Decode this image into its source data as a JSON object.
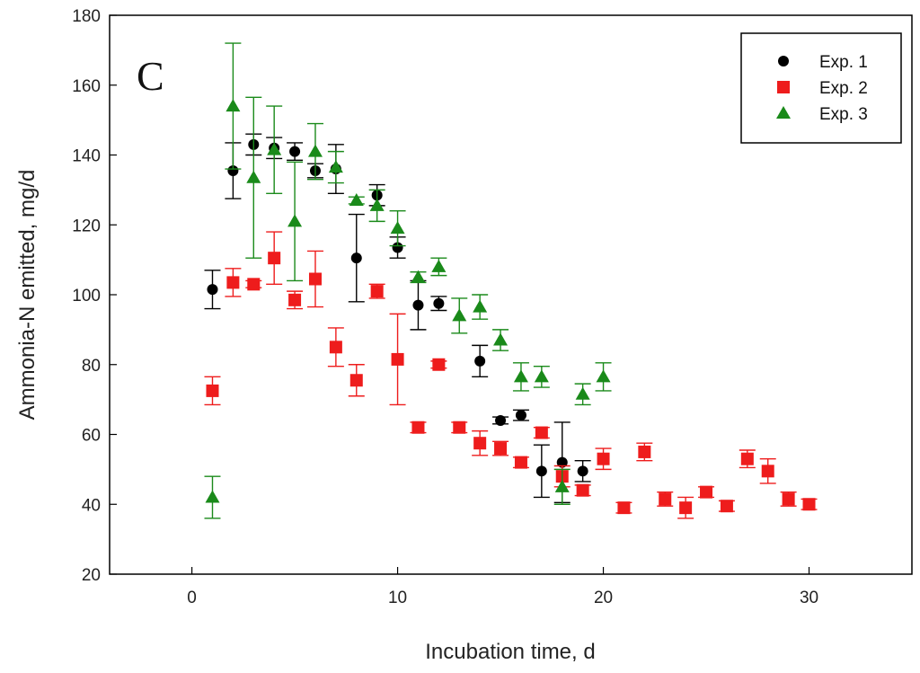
{
  "chart_data": {
    "type": "scatter",
    "panel_label": "C",
    "title": "",
    "xlabel": "Incubation time, d",
    "ylabel": "Ammonia-N emitted, mg/d",
    "xlim": [
      -4,
      35
    ],
    "ylim": [
      20,
      180
    ],
    "xticks": [
      0,
      10,
      20,
      30
    ],
    "yticks": [
      20,
      40,
      60,
      80,
      100,
      120,
      140,
      160,
      180
    ],
    "grid": false,
    "legend_position": "top-right",
    "series": [
      {
        "name": "Exp. 1",
        "marker": "circle",
        "color": "#000000",
        "points": [
          {
            "x": 1,
            "y": 101.5,
            "err": 5.5
          },
          {
            "x": 2,
            "y": 135.5,
            "err": 8
          },
          {
            "x": 3,
            "y": 143,
            "err": 3
          },
          {
            "x": 4,
            "y": 142,
            "err": 3
          },
          {
            "x": 5,
            "y": 141,
            "err": 2.5
          },
          {
            "x": 6,
            "y": 135.5,
            "err": 2
          },
          {
            "x": 7,
            "y": 136,
            "err": 7
          },
          {
            "x": 8,
            "y": 110.5,
            "err": 12.5
          },
          {
            "x": 9,
            "y": 128.5,
            "err": 3
          },
          {
            "x": 10,
            "y": 113.5,
            "err": 3
          },
          {
            "x": 11,
            "y": 97,
            "err": 7
          },
          {
            "x": 12,
            "y": 97.5,
            "err": 2
          },
          {
            "x": 14,
            "y": 81,
            "err": 4.5
          },
          {
            "x": 15,
            "y": 64,
            "err": 1
          },
          {
            "x": 16,
            "y": 65.5,
            "err": 1.5
          },
          {
            "x": 17,
            "y": 49.5,
            "err": 7.5
          },
          {
            "x": 18,
            "y": 52,
            "err": 11.5
          },
          {
            "x": 19,
            "y": 49.5,
            "err": 3
          }
        ]
      },
      {
        "name": "Exp. 2",
        "marker": "square",
        "color": "#ee1c1c",
        "points": [
          {
            "x": 1,
            "y": 72.5,
            "err": 4
          },
          {
            "x": 2,
            "y": 103.5,
            "err": 4
          },
          {
            "x": 3,
            "y": 103,
            "err": 1
          },
          {
            "x": 4,
            "y": 110.5,
            "err": 7.5
          },
          {
            "x": 5,
            "y": 98.5,
            "err": 2.5
          },
          {
            "x": 6,
            "y": 104.5,
            "err": 8
          },
          {
            "x": 7,
            "y": 85,
            "err": 5.5
          },
          {
            "x": 8,
            "y": 75.5,
            "err": 4.5
          },
          {
            "x": 9,
            "y": 101,
            "err": 2
          },
          {
            "x": 10,
            "y": 81.5,
            "err": 13
          },
          {
            "x": 11,
            "y": 62,
            "err": 1.5
          },
          {
            "x": 12,
            "y": 80,
            "err": 1
          },
          {
            "x": 13,
            "y": 62,
            "err": 1.5
          },
          {
            "x": 14,
            "y": 57.5,
            "err": 3.5
          },
          {
            "x": 15,
            "y": 56,
            "err": 2
          },
          {
            "x": 16,
            "y": 52,
            "err": 1.5
          },
          {
            "x": 17,
            "y": 60.5,
            "err": 1.5
          },
          {
            "x": 18,
            "y": 48,
            "err": 3
          },
          {
            "x": 19,
            "y": 44,
            "err": 1.5
          },
          {
            "x": 20,
            "y": 53,
            "err": 3
          },
          {
            "x": 21,
            "y": 39,
            "err": 1.5
          },
          {
            "x": 22,
            "y": 55,
            "err": 2.5
          },
          {
            "x": 23,
            "y": 41.5,
            "err": 2
          },
          {
            "x": 24,
            "y": 39,
            "err": 3
          },
          {
            "x": 25,
            "y": 43.5,
            "err": 1.5
          },
          {
            "x": 26,
            "y": 39.5,
            "err": 1.5
          },
          {
            "x": 27,
            "y": 53,
            "err": 2.5
          },
          {
            "x": 28,
            "y": 49.5,
            "err": 3.5
          },
          {
            "x": 29,
            "y": 41.5,
            "err": 2
          },
          {
            "x": 30,
            "y": 40,
            "err": 1.5
          }
        ]
      },
      {
        "name": "Exp. 3",
        "marker": "triangle",
        "color": "#1a8a1a",
        "points": [
          {
            "x": 1,
            "y": 42,
            "err": 6
          },
          {
            "x": 2,
            "y": 154,
            "err": 18
          },
          {
            "x": 3,
            "y": 133.5,
            "err": 23
          },
          {
            "x": 4,
            "y": 141.5,
            "err": 12.5
          },
          {
            "x": 5,
            "y": 121,
            "err": 17
          },
          {
            "x": 6,
            "y": 141,
            "err": 8
          },
          {
            "x": 7,
            "y": 136.5,
            "err": 4.5
          },
          {
            "x": 8,
            "y": 127,
            "err": 1
          },
          {
            "x": 9,
            "y": 125.5,
            "err": 4.5
          },
          {
            "x": 10,
            "y": 119,
            "err": 5
          },
          {
            "x": 11,
            "y": 105,
            "err": 1.5
          },
          {
            "x": 12,
            "y": 108,
            "err": 2.5
          },
          {
            "x": 13,
            "y": 94,
            "err": 5
          },
          {
            "x": 14,
            "y": 96.5,
            "err": 3.5
          },
          {
            "x": 15,
            "y": 87,
            "err": 3
          },
          {
            "x": 16,
            "y": 76.5,
            "err": 4
          },
          {
            "x": 17,
            "y": 76.5,
            "err": 3
          },
          {
            "x": 18,
            "y": 45,
            "err": 5
          },
          {
            "x": 19,
            "y": 71.5,
            "err": 3
          },
          {
            "x": 20,
            "y": 76.5,
            "err": 4
          }
        ]
      }
    ]
  }
}
